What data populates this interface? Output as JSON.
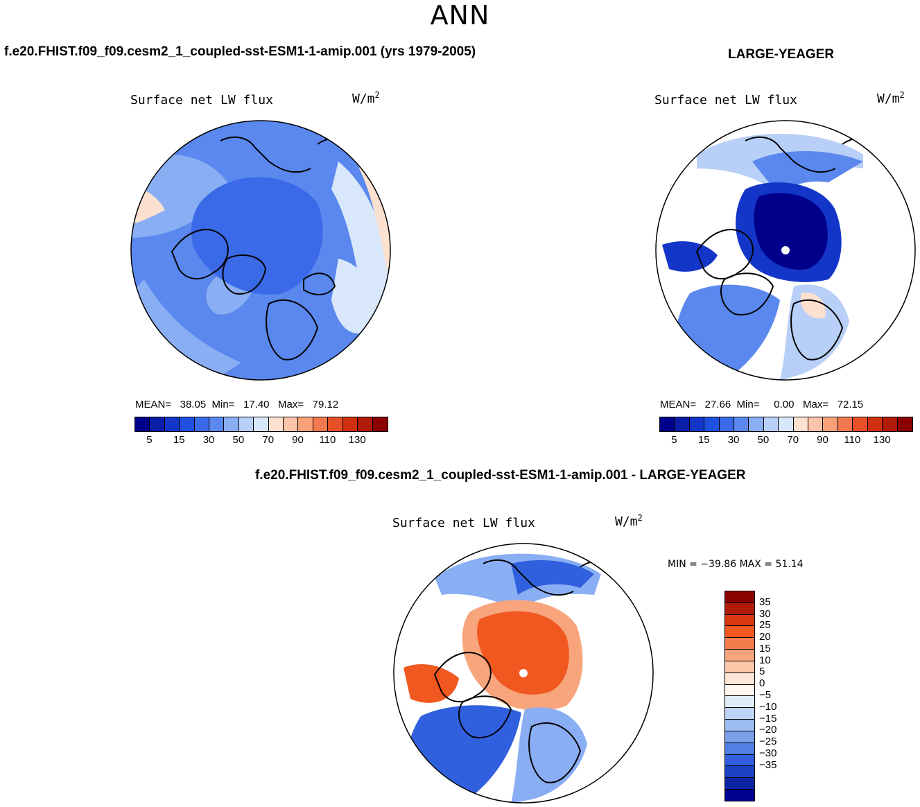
{
  "season": "ANN",
  "panels": {
    "test": {
      "case_title": "f.e20.FHIST.f09_f09.cesm2_1_coupled-sst-ESM1-1-amip.001 (yrs 1979-2005)",
      "var_title": "Surface net LW flux",
      "units_base": "W/m",
      "units_sup": "2",
      "mean_label": "MEAN=",
      "mean_value": "38.05",
      "min_label": "Min=",
      "min_value": "17.40",
      "max_label": "Max=",
      "max_value": "79.12"
    },
    "obs": {
      "case_title": "LARGE-YEAGER",
      "var_title": "Surface net LW flux",
      "units_base": "W/m",
      "units_sup": "2",
      "mean_label": "MEAN=",
      "mean_value": "27.66",
      "min_label": "Min=",
      "min_value": "0.00",
      "max_label": "Max=",
      "max_value": "72.15"
    },
    "diff": {
      "case_title": "f.e20.FHIST.f09_f09.cesm2_1_coupled-sst-ESM1-1-amip.001 - LARGE-YEAGER",
      "var_title": "Surface net LW flux",
      "units_base": "W/m",
      "units_sup": "2",
      "minmax_text": "MIN = −39.86 MAX =   51.14"
    }
  },
  "colorbar_abs": {
    "colors": [
      "#00008b",
      "#0a1ea8",
      "#1436c8",
      "#2050e0",
      "#3a6ae8",
      "#5a88ee",
      "#8aaef4",
      "#b8cff8",
      "#d8e8fa",
      "#fce0d0",
      "#fcc4a8",
      "#f8a078",
      "#f27850",
      "#e85028",
      "#d03010",
      "#b01a08",
      "#8b0000"
    ],
    "labels": [
      "5",
      "15",
      "30",
      "50",
      "70",
      "90",
      "110",
      "130"
    ]
  },
  "colorbar_diff": {
    "colors": [
      "#8b0000",
      "#b01a08",
      "#d83810",
      "#f05820",
      "#f47c4c",
      "#f8a47c",
      "#fcc8ac",
      "#fde6d6",
      "#fff7f0",
      "#e0ecfa",
      "#bed4f6",
      "#9cbcf2",
      "#7aa0ec",
      "#5080e6",
      "#3060de",
      "#1a40c4",
      "#0c24a4",
      "#000090"
    ],
    "labels": [
      "35",
      "30",
      "25",
      "20",
      "15",
      "10",
      "5",
      "0",
      "−5",
      "−10",
      "−15",
      "−20",
      "−25",
      "−30",
      "−35"
    ]
  },
  "map_colors": {
    "test_bg": "#5a88ee",
    "test_center": "#3a6ae8",
    "test_light": "#8aaef4",
    "test_pale": "#d8e8fa",
    "test_warm": "#fce0d0",
    "obs_center": "#00008b",
    "obs_ring": "#1436c8",
    "obs_mid": "#5a88ee",
    "obs_light": "#b8cff8",
    "diff_warm": "#f05820",
    "diff_warm_light": "#f8a47c",
    "diff_cool": "#3060de",
    "diff_cool_light": "#8aaef4"
  }
}
